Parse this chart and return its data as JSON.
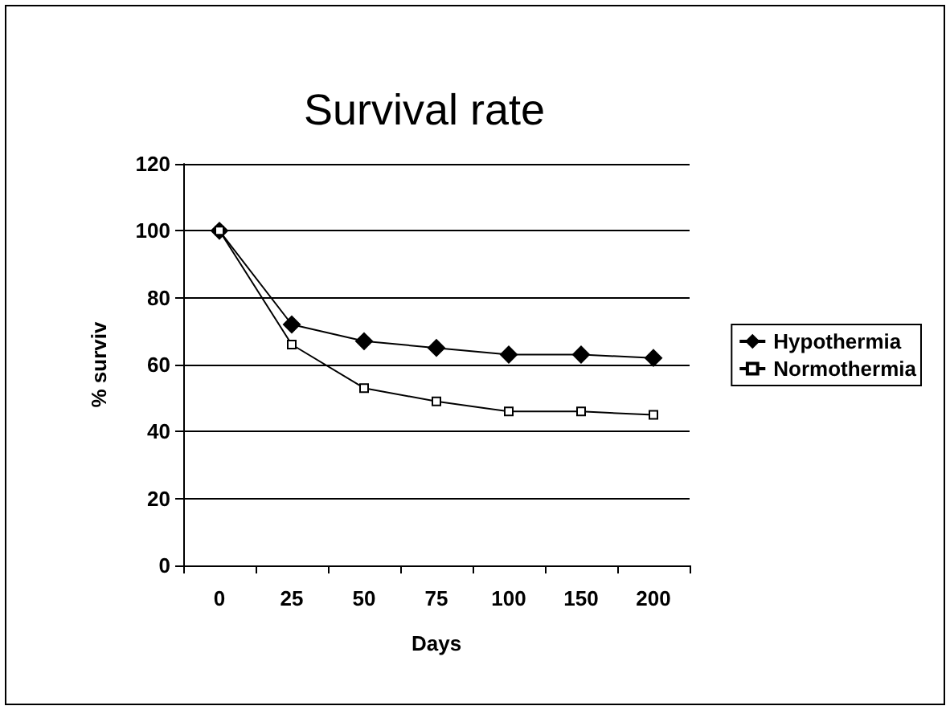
{
  "chart_data": {
    "type": "line",
    "title": "Survival rate",
    "xlabel": "Days",
    "ylabel": "% surviv",
    "categories": [
      "0",
      "25",
      "50",
      "75",
      "100",
      "150",
      "200"
    ],
    "series": [
      {
        "name": "Hypothermia",
        "color": "#000000",
        "marker": "diamond",
        "values": [
          100,
          72,
          67,
          65,
          63,
          63,
          62
        ]
      },
      {
        "name": "Normothermia",
        "color": "#000000",
        "marker": "square",
        "values": [
          100,
          66,
          53,
          49,
          46,
          46,
          45
        ]
      }
    ],
    "ylim": [
      0,
      120
    ],
    "yticks": [
      0,
      20,
      40,
      60,
      80,
      100,
      120
    ],
    "grid": "y",
    "legend": "right"
  }
}
